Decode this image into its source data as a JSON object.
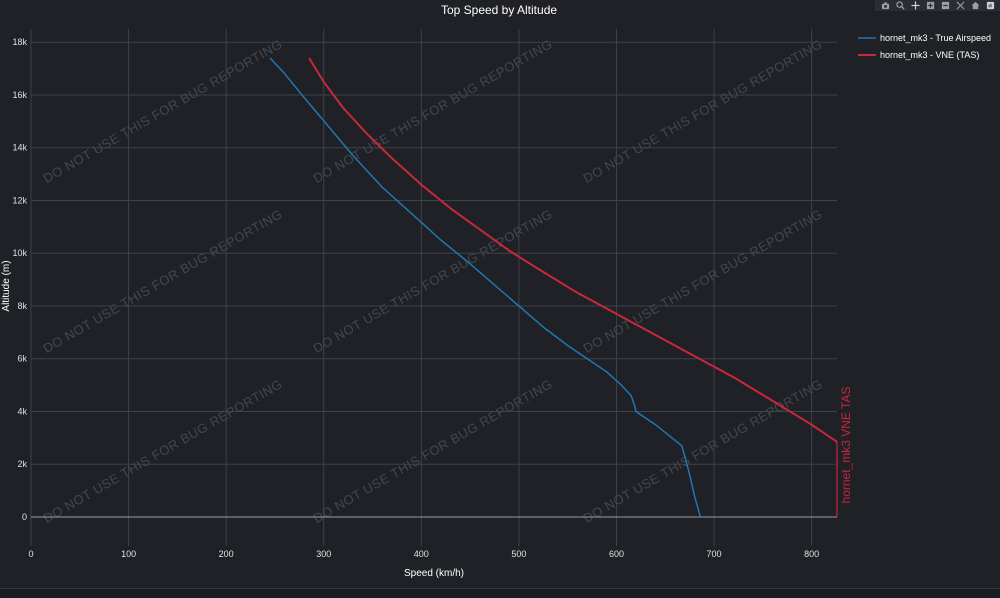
{
  "chart_data": {
    "type": "line",
    "title": "Top Speed by Altitude",
    "xlabel": "Speed (km/h)",
    "ylabel": "Altitude (m)",
    "xlim": [
      0,
      826
    ],
    "ylim": [
      -1100,
      18500
    ],
    "xticks": [
      0,
      100,
      200,
      300,
      400,
      500,
      600,
      700,
      800
    ],
    "xtick_labels": [
      "0",
      "100",
      "200",
      "300",
      "400",
      "500",
      "600",
      "700",
      "800"
    ],
    "yticks": [
      0,
      2000,
      4000,
      6000,
      8000,
      10000,
      12000,
      14000,
      16000,
      18000
    ],
    "ytick_labels": [
      "0",
      "2k",
      "4k",
      "6k",
      "8k",
      "10k",
      "12k",
      "14k",
      "16k",
      "18k"
    ],
    "grid": true,
    "legend_position": "top-right",
    "series": [
      {
        "name": "hornet_mk3 - True Airspeed",
        "color": "#1f77b4",
        "width": 1.5,
        "x": [
          686,
          680,
          675,
          670,
          667,
          640,
          620,
          618,
          615,
          605,
          590,
          570,
          550,
          525,
          500,
          475,
          450,
          420,
          390,
          360,
          330,
          305,
          280,
          260,
          245
        ],
        "y": [
          0,
          800,
          1600,
          2300,
          2700,
          3500,
          4000,
          4300,
          4600,
          5000,
          5500,
          6000,
          6500,
          7200,
          8000,
          8800,
          9600,
          10500,
          11500,
          12500,
          13700,
          14800,
          15900,
          16800,
          17400
        ]
      },
      {
        "name": "hornet_mk3 - VNE (TAS)",
        "color": "#c8283b",
        "width": 2,
        "x": [
          826,
          800,
          760,
          720,
          680,
          640,
          600,
          560,
          520,
          490,
          460,
          430,
          400,
          370,
          345,
          320,
          300,
          285
        ],
        "y": [
          2850,
          3500,
          4400,
          5300,
          6100,
          6900,
          7700,
          8500,
          9400,
          10100,
          10900,
          11700,
          12600,
          13600,
          14500,
          15500,
          16500,
          17400
        ]
      }
    ],
    "vertical_marker": {
      "x": 826,
      "y_from": 0,
      "y_to": 2850,
      "color": "#c8283b"
    },
    "annotation": {
      "text": "hornet_mk3 VNE TAS",
      "color": "#c8283b"
    },
    "watermark": "DO NOT USE THIS FOR BUG REPORTING"
  },
  "modebar": {
    "icons": [
      "camera-icon",
      "zoom-icon",
      "pan-icon",
      "zoom-in-icon",
      "zoom-out-icon",
      "autoscale-icon",
      "reset-axes-icon",
      "plotly-logo-icon"
    ]
  }
}
